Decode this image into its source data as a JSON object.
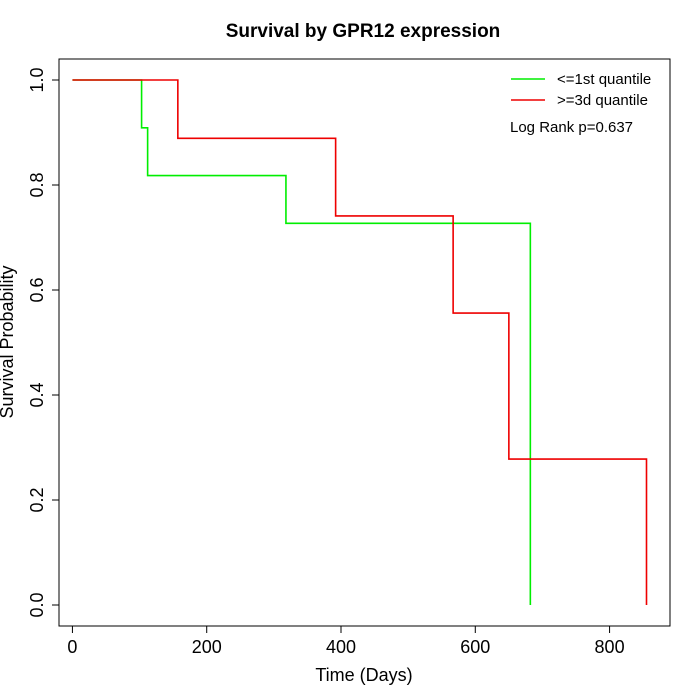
{
  "chart_data": {
    "type": "line",
    "title": "Survival by GPR12 expression",
    "xlabel": "Time (Days)",
    "ylabel": "Survival Probability",
    "xlim": [
      -20,
      890
    ],
    "ylim": [
      -0.04,
      1.04
    ],
    "x_ticks": [
      0,
      200,
      400,
      600,
      800
    ],
    "y_ticks": [
      0.0,
      0.2,
      0.4,
      0.6,
      0.8,
      1.0
    ],
    "x_tick_labels": [
      "0",
      "200",
      "400",
      "600",
      "800"
    ],
    "y_tick_labels": [
      "0.0",
      "0.2",
      "0.4",
      "0.6",
      "0.8",
      "1.0"
    ],
    "grid": false,
    "legend_position": "top-right",
    "series": [
      {
        "name": "<=1st quantile",
        "color": "#00ee00",
        "step": "post",
        "x": [
          0,
          103,
          103,
          112,
          112,
          318,
          318,
          682,
          682
        ],
        "y": [
          1.0,
          1.0,
          0.909,
          0.909,
          0.818,
          0.818,
          0.727,
          0.727,
          0.0
        ]
      },
      {
        "name": ">=3d quantile",
        "color": "#ee0000",
        "step": "post",
        "x": [
          0,
          157,
          157,
          392,
          392,
          567,
          567,
          650,
          650,
          855,
          855
        ],
        "y": [
          1.0,
          1.0,
          0.889,
          0.889,
          0.741,
          0.741,
          0.556,
          0.556,
          0.278,
          0.278,
          0.0
        ]
      }
    ],
    "annotation": "Log Rank p=0.637"
  }
}
